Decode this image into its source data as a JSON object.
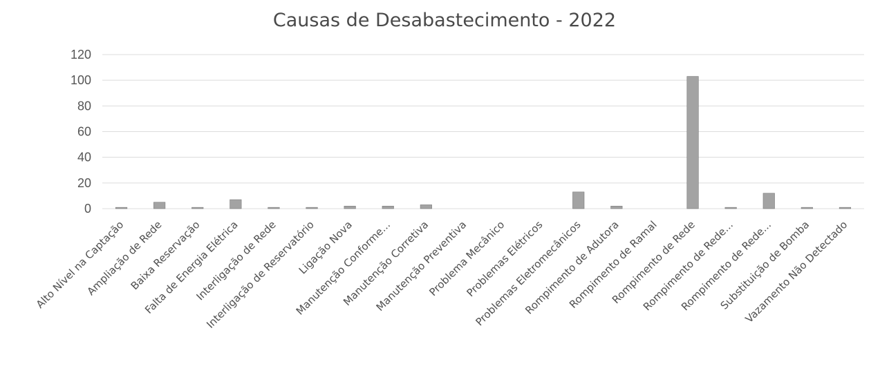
{
  "chart_data": {
    "type": "bar",
    "title": "Causas de Desabastecimento - 2022",
    "xlabel": "",
    "ylabel": "",
    "ylim": [
      0,
      120
    ],
    "yticks": [
      0,
      20,
      40,
      60,
      80,
      100,
      120
    ],
    "grid": true,
    "categories": [
      "Alto Nível na Captação",
      "Ampliação de Rede",
      "Baixa Reservação",
      "Falta de Energia Elétrica",
      "Interligação de Rede",
      "Interligação de Reservatório",
      "Ligação Nova",
      "Manutenção Conforme...",
      "Manutenção Corretiva",
      "Manutenção Preventiva",
      "Problema Mecânico",
      "Problemas Elétricos",
      "Problemas Eletromecânicos",
      "Rompimento de Adutora",
      "Rompimento de Ramal",
      "Rompimento de Rede",
      "Rompimento de Rede...",
      "Rompimento de Rede...",
      "Substituição de Bomba",
      "Vazamento Não Detectado"
    ],
    "values": [
      1,
      5,
      1,
      7,
      1,
      1,
      2,
      2,
      3,
      0,
      0,
      0,
      13,
      2,
      0,
      103,
      1,
      12,
      1,
      1
    ],
    "bar_color": "#a3a3a3"
  }
}
